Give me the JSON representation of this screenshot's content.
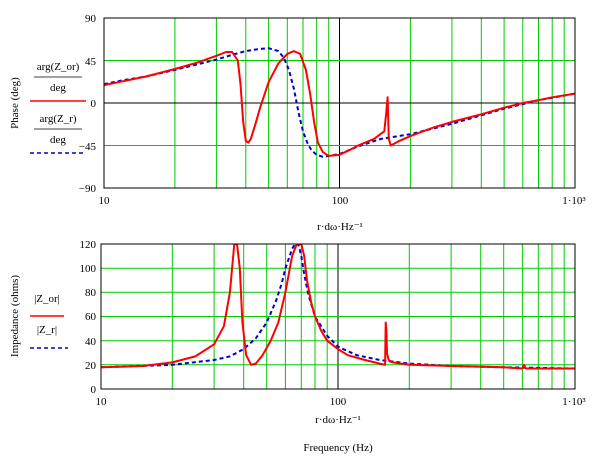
{
  "chart_data": [
    {
      "type": "line",
      "xscale": "log",
      "xlim": [
        10,
        1000
      ],
      "ylim": [
        -90,
        90
      ],
      "x_tick_labels": [
        "10",
        "100",
        "1·10³"
      ],
      "y_tick_labels": [
        "90",
        "45",
        "0",
        "−45",
        "−90"
      ],
      "ylabel": "Phase (deg)",
      "xlabel": "r·dω·Hz⁻¹",
      "grid": true,
      "series": [
        {
          "name": "arg(Z_or) / deg",
          "color": "#ff0000",
          "style": "solid",
          "x": [
            10,
            12,
            15,
            20,
            25,
            30,
            33,
            35,
            37,
            38,
            39,
            40,
            41,
            42,
            44,
            46,
            50,
            55,
            60,
            64,
            68,
            72,
            75,
            78,
            81,
            85,
            90,
            100,
            110,
            120,
            140,
            155,
            158,
            160,
            162,
            165,
            180,
            200,
            250,
            300,
            400,
            500,
            600,
            700,
            800,
            1000
          ],
          "y": [
            19,
            23,
            28,
            36,
            43,
            50,
            54,
            54,
            45,
            20,
            -20,
            -40,
            -42,
            -38,
            -22,
            -5,
            22,
            42,
            52,
            55,
            52,
            35,
            10,
            -20,
            -42,
            -52,
            -56,
            -55,
            -50,
            -45,
            -38,
            -30,
            -10,
            6,
            -38,
            -45,
            -40,
            -35,
            -26,
            -20,
            -12,
            -5,
            0,
            3,
            6,
            10
          ]
        },
        {
          "name": "arg(Z_r) / deg",
          "color": "#0000cc",
          "style": "dashed",
          "x": [
            10,
            12,
            15,
            20,
            25,
            30,
            35,
            40,
            45,
            50,
            55,
            58,
            61,
            64,
            67,
            70,
            73,
            76,
            80,
            85,
            90,
            100,
            120,
            150,
            200,
            300,
            500,
            700,
            1000
          ],
          "y": [
            20,
            24,
            28,
            35,
            41,
            46,
            51,
            55,
            57,
            58,
            55,
            48,
            35,
            15,
            -10,
            -30,
            -42,
            -50,
            -55,
            -57,
            -56,
            -54,
            -46,
            -38,
            -33,
            -22,
            -6,
            3,
            10
          ]
        }
      ],
      "annotations": [
        "arg(Z_or)",
        "deg",
        "arg(Z_r)",
        "deg"
      ]
    },
    {
      "type": "line",
      "xscale": "log",
      "xlim": [
        10,
        1000
      ],
      "ylim": [
        0,
        120
      ],
      "x_tick_labels": [
        "10",
        "100",
        "1·10³"
      ],
      "y_tick_labels": [
        "120",
        "100",
        "80",
        "60",
        "40",
        "20",
        "0"
      ],
      "ylabel": "Impedance (ohms)",
      "xlabel": "r·dω·Hz⁻¹",
      "xlabel2": "Frequency (Hz)",
      "grid": true,
      "series": [
        {
          "name": "|Z_or|",
          "color": "#ff0000",
          "style": "solid",
          "x": [
            10,
            15,
            20,
            25,
            30,
            33,
            35,
            36.5,
            37.5,
            38.5,
            39.5,
            41,
            43,
            45,
            48,
            52,
            56,
            60,
            64,
            67,
            70,
            72,
            74,
            77,
            80,
            85,
            90,
            100,
            110,
            130,
            150,
            158,
            159,
            160,
            161,
            163,
            165,
            170,
            200,
            300,
            500,
            600,
            610,
            620,
            700,
            1000
          ],
          "y": [
            18,
            19,
            22,
            27,
            37,
            52,
            80,
            120,
            120,
            100,
            55,
            28,
            20,
            21,
            28,
            40,
            55,
            80,
            110,
            120,
            120,
            110,
            90,
            72,
            60,
            48,
            40,
            33,
            28,
            24,
            21,
            20,
            55,
            48,
            30,
            25,
            23,
            22,
            20,
            19,
            18,
            17,
            20,
            17,
            17,
            17
          ]
        },
        {
          "name": "|Z_r|",
          "color": "#0000cc",
          "style": "dashed",
          "x": [
            10,
            20,
            30,
            35,
            40,
            45,
            50,
            55,
            58,
            60,
            62,
            64,
            66,
            68,
            70,
            72,
            75,
            80,
            90,
            100,
            120,
            150,
            200,
            300,
            500,
            1000
          ],
          "y": [
            18,
            20,
            24,
            27,
            33,
            42,
            55,
            74,
            88,
            100,
            108,
            116,
            120,
            120,
            110,
            95,
            78,
            60,
            44,
            35,
            28,
            24,
            21,
            19,
            18,
            17
          ]
        }
      ],
      "annotations": [
        "|Z_or|",
        "|Z_r|"
      ]
    }
  ]
}
